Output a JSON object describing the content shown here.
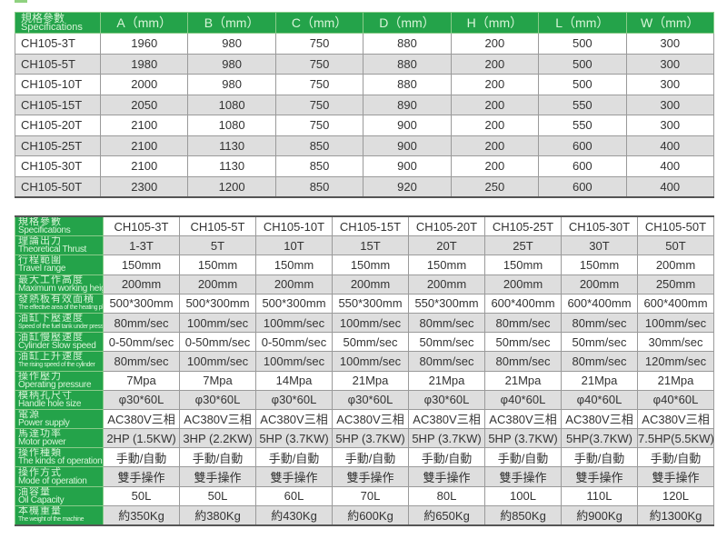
{
  "colors": {
    "header_green": "#24a34a",
    "stripe_gray": "#dedede"
  },
  "dimensions_table": {
    "spec_label_zh": "規格參數",
    "spec_label_en": "Specifications",
    "columns": [
      "A（mm）",
      "B（mm）",
      "C（mm）",
      "D（mm）",
      "H（mm）",
      "L（mm）",
      "W（mm）"
    ],
    "rows": [
      {
        "model": "CH105-3T",
        "values": [
          "1960",
          "980",
          "750",
          "880",
          "200",
          "500",
          "300"
        ]
      },
      {
        "model": "CH105-5T",
        "values": [
          "1980",
          "980",
          "750",
          "880",
          "200",
          "500",
          "300"
        ]
      },
      {
        "model": "CH105-10T",
        "values": [
          "2000",
          "980",
          "750",
          "880",
          "200",
          "500",
          "300"
        ]
      },
      {
        "model": "CH105-15T",
        "values": [
          "2050",
          "1080",
          "750",
          "890",
          "200",
          "550",
          "300"
        ]
      },
      {
        "model": "CH105-20T",
        "values": [
          "2100",
          "1080",
          "750",
          "900",
          "200",
          "550",
          "300"
        ]
      },
      {
        "model": "CH105-25T",
        "values": [
          "2100",
          "1130",
          "850",
          "900",
          "200",
          "600",
          "400"
        ]
      },
      {
        "model": "CH105-30T",
        "values": [
          "2100",
          "1130",
          "850",
          "900",
          "200",
          "600",
          "400"
        ]
      },
      {
        "model": "CH105-50T",
        "values": [
          "2300",
          "1200",
          "850",
          "920",
          "250",
          "600",
          "400"
        ]
      }
    ]
  },
  "spec_table": {
    "rows": [
      {
        "zh": "規格參數",
        "en": "Specifications",
        "values": [
          "CH105-3T",
          "CH105-5T",
          "CH105-10T",
          "CH105-15T",
          "CH105-20T",
          "CH105-25T",
          "CH105-30T",
          "CH105-50T"
        ]
      },
      {
        "zh": "理論出力",
        "en": "Theoretical Thrust",
        "values": [
          "1-3T",
          "5T",
          "10T",
          "15T",
          "20T",
          "25T",
          "30T",
          "50T"
        ]
      },
      {
        "zh": "行程範圍",
        "en": "Travel range",
        "values": [
          "150mm",
          "150mm",
          "150mm",
          "150mm",
          "150mm",
          "150mm",
          "150mm",
          "200mm"
        ]
      },
      {
        "zh": "最大工作高度",
        "en": "Maximum working height",
        "values": [
          "200mm",
          "200mm",
          "200mm",
          "200mm",
          "200mm",
          "200mm",
          "200mm",
          "250mm"
        ]
      },
      {
        "zh": "發熱板有效面積",
        "en": "The effective area of the heating plate",
        "values": [
          "500*300mm",
          "500*300mm",
          "500*300mm",
          "550*300mm",
          "550*300mm",
          "600*400mm",
          "600*400mm",
          "600*400mm"
        ]
      },
      {
        "zh": "油缸下壓速度",
        "en": "Speed of the fuel tank under pressure",
        "values": [
          "80mm/sec",
          "100mm/sec",
          "100mm/sec",
          "100mm/sec",
          "80mm/sec",
          "80mm/sec",
          "80mm/sec",
          "100mm/sec"
        ]
      },
      {
        "zh": "油缸慢壓速度",
        "en": "Cylinder Slow speed",
        "values": [
          "0-50mm/sec",
          "0-50mm/sec",
          "0-50mm/sec",
          "50mm/sec",
          "50mm/sec",
          "50mm/sec",
          "50mm/sec",
          "30mm/sec"
        ]
      },
      {
        "zh": "油缸上升速度",
        "en": "The rising speed of the cylinder",
        "values": [
          "80mm/sec",
          "100mm/sec",
          "100mm/sec",
          "100mm/sec",
          "80mm/sec",
          "80mm/sec",
          "80mm/sec",
          "120mm/sec"
        ]
      },
      {
        "zh": "操作壓力",
        "en": "Operating pressure",
        "values": [
          "7Mpa",
          "7Mpa",
          "14Mpa",
          "21Mpa",
          "21Mpa",
          "21Mpa",
          "21Mpa",
          "21Mpa"
        ]
      },
      {
        "zh": "模柄孔尺寸",
        "en": "Handle hole size",
        "values": [
          "φ30*60L",
          "φ30*60L",
          "φ30*60L",
          "φ30*60L",
          "φ30*60L",
          "φ40*60L",
          "φ40*60L",
          "φ40*60L"
        ]
      },
      {
        "zh": "電源",
        "en": "Power supply",
        "values": [
          "AC380V三相",
          "AC380V三相",
          "AC380V三相",
          "AC380V三相",
          "AC380V三相",
          "AC380V三相",
          "AC380V三相",
          "AC380V三相"
        ]
      },
      {
        "zh": "馬達功率",
        "en": "Motor power",
        "values": [
          "2HP (1.5KW)",
          "3HP (2.2KW)",
          "5HP (3.7KW)",
          "5HP (3.7KW)",
          "5HP (3.7KW)",
          "5HP (3.7KW)",
          "5HP(3.7KW)",
          "7.5HP(5.5KW)"
        ]
      },
      {
        "zh": "操作種類",
        "en": "The kinds of operations",
        "values": [
          "手動/自動",
          "手動/自動",
          "手動/自動",
          "手動/自動",
          "手動/自動",
          "手動/自動",
          "手動/自動",
          "手動/自動"
        ]
      },
      {
        "zh": "操作方式",
        "en": "Mode of operation",
        "values": [
          "雙手操作",
          "雙手操作",
          "雙手操作",
          "雙手操作",
          "雙手操作",
          "雙手操作",
          "雙手操作",
          "雙手操作"
        ]
      },
      {
        "zh": "油容量",
        "en": "Oil Capacity",
        "values": [
          "50L",
          "50L",
          "60L",
          "70L",
          "80L",
          "100L",
          "110L",
          "120L"
        ]
      },
      {
        "zh": "本機重量",
        "en": "The weight of the machine",
        "values": [
          "約350Kg",
          "約380Kg",
          "約430Kg",
          "約600Kg",
          "約650Kg",
          "約850Kg",
          "約900Kg",
          "約1300Kg"
        ]
      }
    ]
  }
}
